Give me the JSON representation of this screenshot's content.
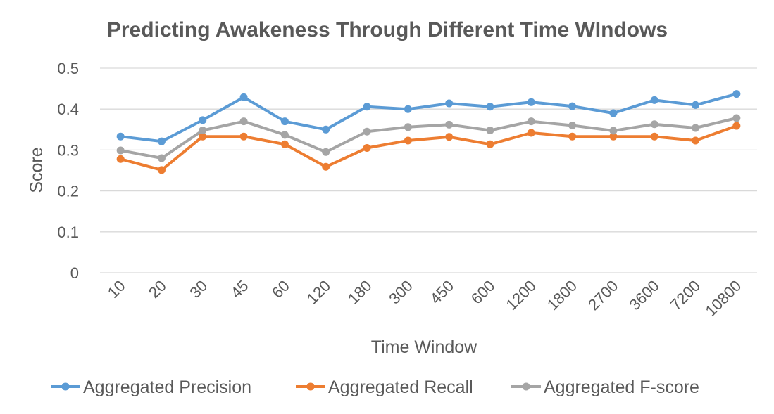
{
  "chart_data": {
    "type": "line",
    "title": "Predicting Awakeness Through Different Time WIndows",
    "xlabel": "Time Window",
    "ylabel": "Score",
    "ylim": [
      0,
      0.5
    ],
    "yticks": [
      "0",
      "0.1",
      "0.2",
      "0.3",
      "0.4",
      "0.5"
    ],
    "grid": true,
    "legend_position": "bottom",
    "categories": [
      "10",
      "20",
      "30",
      "45",
      "60",
      "120",
      "180",
      "300",
      "450",
      "600",
      "1200",
      "1800",
      "2700",
      "3600",
      "7200",
      "10800"
    ],
    "series": [
      {
        "name": "Aggregated Precision",
        "color": "#5b9bd5",
        "values": [
          0.333,
          0.321,
          0.373,
          0.429,
          0.37,
          0.35,
          0.406,
          0.4,
          0.414,
          0.406,
          0.417,
          0.407,
          0.39,
          0.422,
          0.41,
          0.437
        ]
      },
      {
        "name": "Aggregated Recall",
        "color": "#ed7d31",
        "values": [
          0.278,
          0.251,
          0.333,
          0.333,
          0.314,
          0.259,
          0.305,
          0.323,
          0.332,
          0.314,
          0.342,
          0.333,
          0.333,
          0.333,
          0.323,
          0.359
        ]
      },
      {
        "name": "Aggregated F-score",
        "color": "#a5a5a5",
        "values": [
          0.299,
          0.28,
          0.348,
          0.37,
          0.337,
          0.295,
          0.345,
          0.356,
          0.362,
          0.348,
          0.37,
          0.36,
          0.347,
          0.363,
          0.354,
          0.378
        ]
      }
    ]
  }
}
